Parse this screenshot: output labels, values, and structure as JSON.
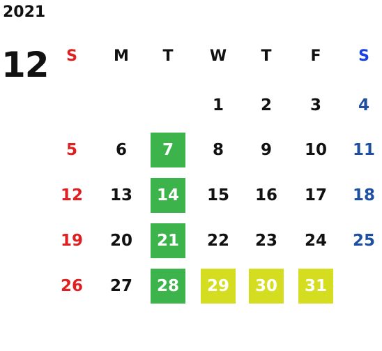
{
  "calendar": {
    "year": "2021",
    "month": "12",
    "weekdays": [
      "S",
      "M",
      "T",
      "W",
      "T",
      "F",
      "S"
    ],
    "colors": {
      "sunday": "#e02020",
      "saturday_header": "#1a3ee0",
      "saturday": "#1f4fa0",
      "highlight_green": "#3cb44b",
      "highlight_yellow": "#d4dd1f"
    },
    "weeks": [
      [
        "",
        "",
        "",
        "1",
        "2",
        "3",
        "4"
      ],
      [
        "5",
        "6",
        "7",
        "8",
        "9",
        "10",
        "11"
      ],
      [
        "12",
        "13",
        "14",
        "15",
        "16",
        "17",
        "18"
      ],
      [
        "19",
        "20",
        "21",
        "22",
        "23",
        "24",
        "25"
      ],
      [
        "26",
        "27",
        "28",
        "29",
        "30",
        "31",
        ""
      ]
    ],
    "highlighted_green": [
      "7",
      "14",
      "21",
      "28"
    ],
    "highlighted_yellow": [
      "29",
      "30",
      "31"
    ]
  }
}
